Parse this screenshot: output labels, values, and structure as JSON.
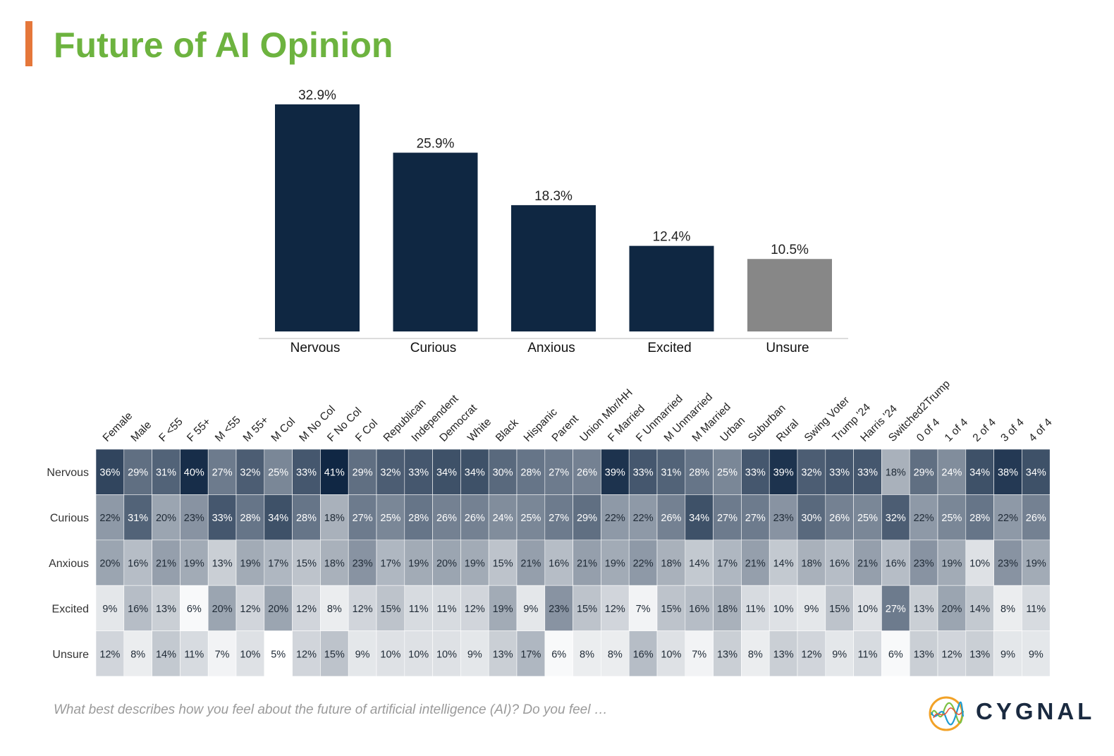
{
  "title": "Future of AI Opinion",
  "question": "What best describes how you feel about the future of artificial intelligence (AI)? Do you feel …",
  "brand": {
    "name": "CYGNAL",
    "logo_icon": "cygnal-wave-logo-icon"
  },
  "colors": {
    "title": "#6db33f",
    "accent": "#e5773a",
    "bar_primary": "#0f2742",
    "bar_unsure": "#878787",
    "heat_base": "#102744"
  },
  "chart_data": [
    {
      "type": "bar",
      "categories": [
        "Nervous",
        "Curious",
        "Anxious",
        "Excited",
        "Unsure"
      ],
      "values": [
        32.9,
        25.9,
        18.3,
        12.4,
        10.5
      ],
      "data_labels": [
        "32.9%",
        "25.9%",
        "18.3%",
        "12.4%",
        "10.5%"
      ],
      "ylim": [
        0,
        32.9
      ],
      "grid": false
    },
    {
      "type": "heatmap",
      "columns": [
        "Female",
        "Male",
        "F <55",
        "F 55+",
        "M <55",
        "M 55+",
        "M Col",
        "M No Col",
        "F No Col",
        "F Col",
        "Republican",
        "Independent",
        "Democrat",
        "White",
        "Black",
        "Hispanic",
        "Parent",
        "Union Mbr/HH",
        "F Married",
        "F Unmarried",
        "M Unmarried",
        "M Married",
        "Urban",
        "Suburban",
        "Rural",
        "Swing Voter",
        "Trump '24",
        "Harris '24",
        "Switched2Trump",
        "0 of 4",
        "1 of 4",
        "2 of 4",
        "3 of 4",
        "4 of 4"
      ],
      "rows": [
        "Nervous",
        "Curious",
        "Anxious",
        "Excited",
        "Unsure"
      ],
      "values": [
        [
          36,
          29,
          31,
          40,
          27,
          32,
          25,
          33,
          41,
          29,
          32,
          33,
          34,
          34,
          30,
          28,
          27,
          26,
          39,
          33,
          31,
          28,
          25,
          33,
          39,
          32,
          33,
          33,
          18,
          29,
          24,
          34,
          38,
          34
        ],
        [
          22,
          31,
          20,
          23,
          33,
          28,
          34,
          28,
          18,
          27,
          25,
          28,
          26,
          26,
          24,
          25,
          27,
          29,
          22,
          22,
          26,
          34,
          27,
          27,
          23,
          30,
          26,
          25,
          32,
          22,
          25,
          28,
          22,
          26
        ],
        [
          20,
          16,
          21,
          19,
          13,
          19,
          17,
          15,
          18,
          23,
          17,
          19,
          20,
          19,
          15,
          21,
          16,
          21,
          19,
          22,
          18,
          14,
          17,
          21,
          14,
          18,
          16,
          21,
          16,
          23,
          19,
          10,
          23,
          19
        ],
        [
          9,
          16,
          13,
          6,
          20,
          12,
          20,
          12,
          8,
          12,
          15,
          11,
          11,
          12,
          19,
          9,
          23,
          15,
          12,
          7,
          15,
          16,
          18,
          11,
          10,
          9,
          15,
          10,
          27,
          13,
          20,
          14,
          8,
          11
        ],
        [
          12,
          8,
          14,
          11,
          7,
          10,
          5,
          12,
          15,
          9,
          10,
          10,
          10,
          9,
          13,
          17,
          6,
          8,
          8,
          16,
          10,
          7,
          13,
          8,
          13,
          12,
          9,
          11,
          6,
          13,
          12,
          13,
          9,
          9
        ]
      ],
      "unit": "%"
    }
  ]
}
